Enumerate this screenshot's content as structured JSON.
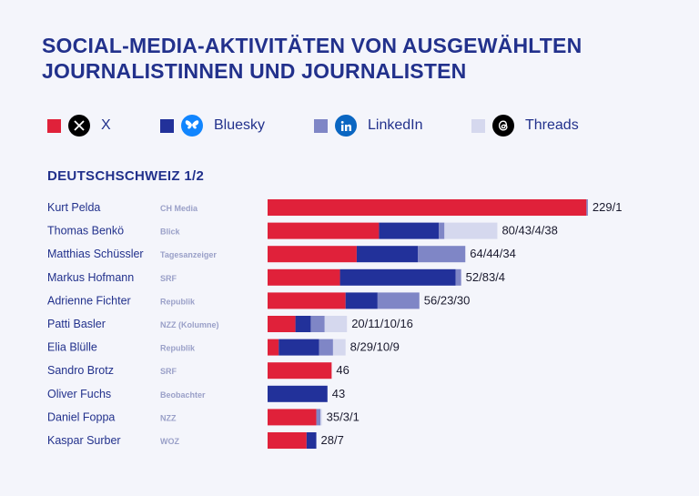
{
  "title": "SOCIAL-MEDIA-AKTIVITÄTEN VON AUSGEWÄHLTEN JOURNALISTINNEN UND JOURNALISTEN",
  "legend": [
    {
      "label": "X",
      "color": "#e0213a",
      "icon": "x-logo-icon"
    },
    {
      "label": "Bluesky",
      "color": "#22319a",
      "icon": "bluesky-butterfly-icon"
    },
    {
      "label": "LinkedIn",
      "color": "#7f86c6",
      "icon": "linkedin-logo-icon"
    },
    {
      "label": "Threads",
      "color": "#d5d8ee",
      "icon": "threads-logo-icon"
    }
  ],
  "section_title": "DEUTSCHSCHWEIZ  1/2",
  "chart_data": {
    "type": "bar",
    "orientation": "horizontal",
    "stacked": true,
    "categories": [
      "Kurt Pelda",
      "Thomas Benkö",
      "Matthias Schüssler",
      "Markus Hofmann",
      "Adrienne Fichter",
      "Patti Basler",
      "Elia Blülle",
      "Sandro Brotz",
      "Oliver Fuchs",
      "Daniel Foppa",
      "Kaspar Surber"
    ],
    "outlets": [
      "CH Media",
      "Blick",
      "Tagesanzeiger",
      "SRF",
      "Republik",
      "NZZ (Kolumne)",
      "Republik",
      "SRF",
      "Beobachter",
      "NZZ",
      "WOZ"
    ],
    "series": [
      {
        "name": "X",
        "color": "#e0213a",
        "values": [
          229,
          80,
          64,
          52,
          56,
          20,
          8,
          46,
          0,
          35,
          28
        ]
      },
      {
        "name": "Bluesky",
        "color": "#22319a",
        "values": [
          0,
          43,
          44,
          83,
          23,
          11,
          29,
          0,
          43,
          0,
          7
        ]
      },
      {
        "name": "LinkedIn",
        "color": "#7f86c6",
        "values": [
          1,
          4,
          34,
          4,
          30,
          10,
          10,
          0,
          0,
          3,
          0
        ]
      },
      {
        "name": "Threads",
        "color": "#d5d8ee",
        "values": [
          0,
          38,
          0,
          0,
          0,
          16,
          9,
          0,
          0,
          1,
          0
        ]
      }
    ],
    "value_labels": [
      "229/1",
      "80/43/4/38",
      "64/44/34",
      "52/83/4",
      "56/23/30",
      "20/11/10/16",
      "8/29/10/9",
      "46",
      "43",
      "35/3/1",
      "28/7"
    ],
    "legend_position": "top",
    "grid": false
  }
}
